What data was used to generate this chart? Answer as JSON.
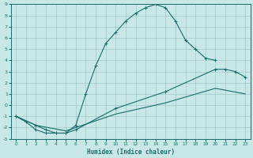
{
  "xlabel": "Humidex (Indice chaleur)",
  "ylabel": "",
  "xlim": [
    -0.5,
    23.5
  ],
  "ylim": [
    -3,
    9
  ],
  "xtick_labels": [
    "0",
    "1",
    "2",
    "3",
    "4",
    "5",
    "6",
    "7",
    "8",
    "9",
    "10",
    "11",
    "12",
    "13",
    "14",
    "15",
    "16",
    "17",
    "18",
    "19",
    "20",
    "21",
    "22",
    "23"
  ],
  "xtick_vals": [
    0,
    1,
    2,
    3,
    4,
    5,
    6,
    7,
    8,
    9,
    10,
    11,
    12,
    13,
    14,
    15,
    16,
    17,
    18,
    19,
    20,
    21,
    22,
    23
  ],
  "ytick_vals": [
    -3,
    -2,
    -1,
    0,
    1,
    2,
    3,
    4,
    5,
    6,
    7,
    8,
    9
  ],
  "ytick_labels": [
    "-3",
    "-2",
    "-1",
    "0",
    "1",
    "2",
    "3",
    "4",
    "5",
    "6",
    "7",
    "8",
    "9"
  ],
  "bg_color": "#c8e8e8",
  "grid_color": "#a0c8c8",
  "line_color": "#1a6b6b",
  "curve1_x": [
    0,
    1,
    2,
    3,
    4,
    5,
    6,
    7,
    8,
    9,
    10,
    11,
    12,
    13,
    14,
    15,
    16,
    17,
    18,
    19,
    20
  ],
  "curve1_y": [
    -1.0,
    -1.5,
    -2.2,
    -2.5,
    -2.5,
    -2.5,
    -1.8,
    1.0,
    3.5,
    5.5,
    6.5,
    7.5,
    8.2,
    8.7,
    9.0,
    8.7,
    7.5,
    5.8,
    5.0,
    4.2,
    4.0
  ],
  "curve2_x": [
    0,
    2,
    3,
    4,
    5,
    6,
    10,
    15,
    20,
    21,
    22,
    23
  ],
  "curve2_y": [
    -1.0,
    -1.8,
    -2.2,
    -2.5,
    -2.5,
    -2.2,
    -0.3,
    1.2,
    3.2,
    3.2,
    3.0,
    2.5
  ],
  "curve3_x": [
    0,
    2,
    5,
    10,
    15,
    20,
    23
  ],
  "curve3_y": [
    -1.0,
    -1.8,
    -2.3,
    -0.8,
    0.2,
    1.5,
    1.0
  ],
  "marker": "+"
}
